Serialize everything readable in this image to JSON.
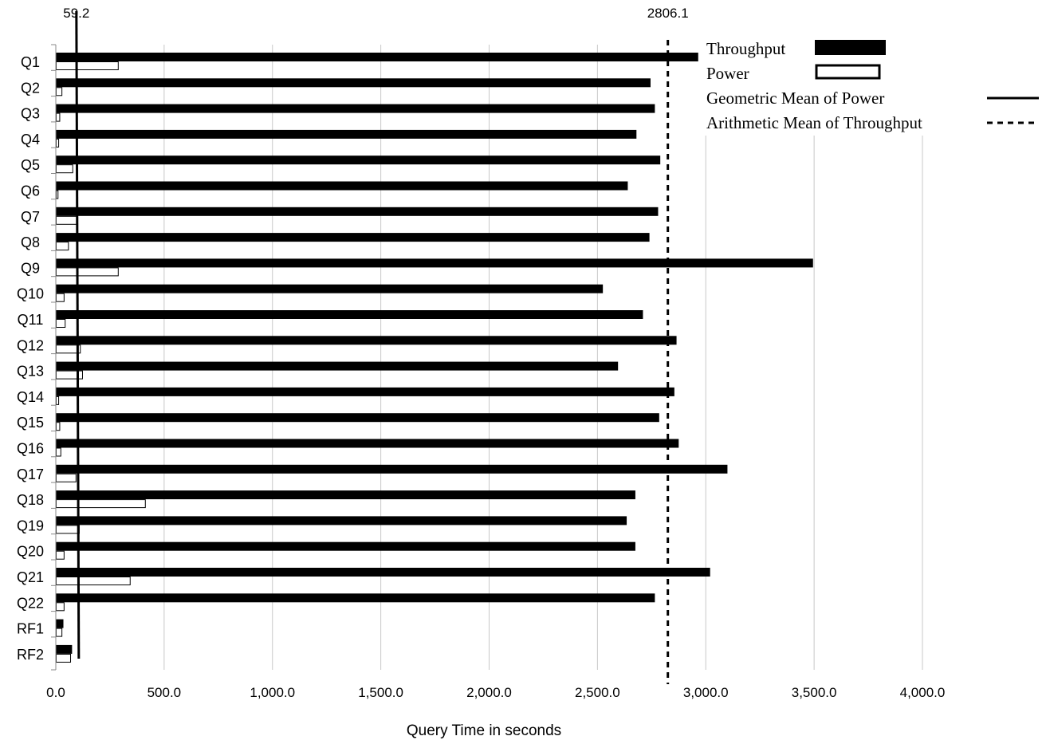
{
  "chart_data": {
    "type": "bar",
    "orientation": "horizontal",
    "xlabel": "Query Time in seconds",
    "ylabel": "",
    "xlim": [
      0,
      4000
    ],
    "xticks": [
      "0.0",
      "500.0",
      "1,000.0",
      "1,500.0",
      "2,000.0",
      "2,500.0",
      "3,000.0",
      "3,500.0",
      "4,000.0"
    ],
    "xtick_values": [
      0,
      500,
      1000,
      1500,
      2000,
      2500,
      3000,
      3500,
      4000
    ],
    "categories": [
      "Q1",
      "Q2",
      "Q3",
      "Q4",
      "Q5",
      "Q6",
      "Q7",
      "Q8",
      "Q9",
      "Q10",
      "Q11",
      "Q12",
      "Q13",
      "Q14",
      "Q15",
      "Q16",
      "Q17",
      "Q18",
      "Q19",
      "Q20",
      "Q21",
      "Q22",
      "RF1",
      "RF2"
    ],
    "series": [
      {
        "name": "Throughput",
        "style": "filled",
        "values": [
          2965,
          2745,
          2765,
          2680,
          2790,
          2640,
          2780,
          2740,
          3495,
          2525,
          2710,
          2865,
          2595,
          2855,
          2785,
          2875,
          3100,
          2675,
          2635,
          2675,
          3020,
          2765,
          35,
          75
        ]
      },
      {
        "name": "Power",
        "style": "outline",
        "values": [
          290,
          30,
          20,
          15,
          80,
          12,
          100,
          60,
          290,
          40,
          45,
          115,
          125,
          15,
          20,
          25,
          95,
          415,
          110,
          40,
          345,
          40,
          30,
          70
        ]
      }
    ],
    "reference_lines": [
      {
        "name": "Geometric Mean of Power",
        "label": "59.2",
        "value": 59.2,
        "display_x": 95,
        "style": "solid"
      },
      {
        "name": "Arithmetic Mean of Throughput",
        "label": "2806.1",
        "value": 2806.1,
        "display_x": 2825,
        "style": "dashed"
      }
    ],
    "legend_placement": "top-right",
    "grid": "vertical"
  },
  "colors": {
    "bar_fill": "#000000",
    "grid": "#c8c8c8",
    "axis": "#888888",
    "text": "#000000"
  }
}
